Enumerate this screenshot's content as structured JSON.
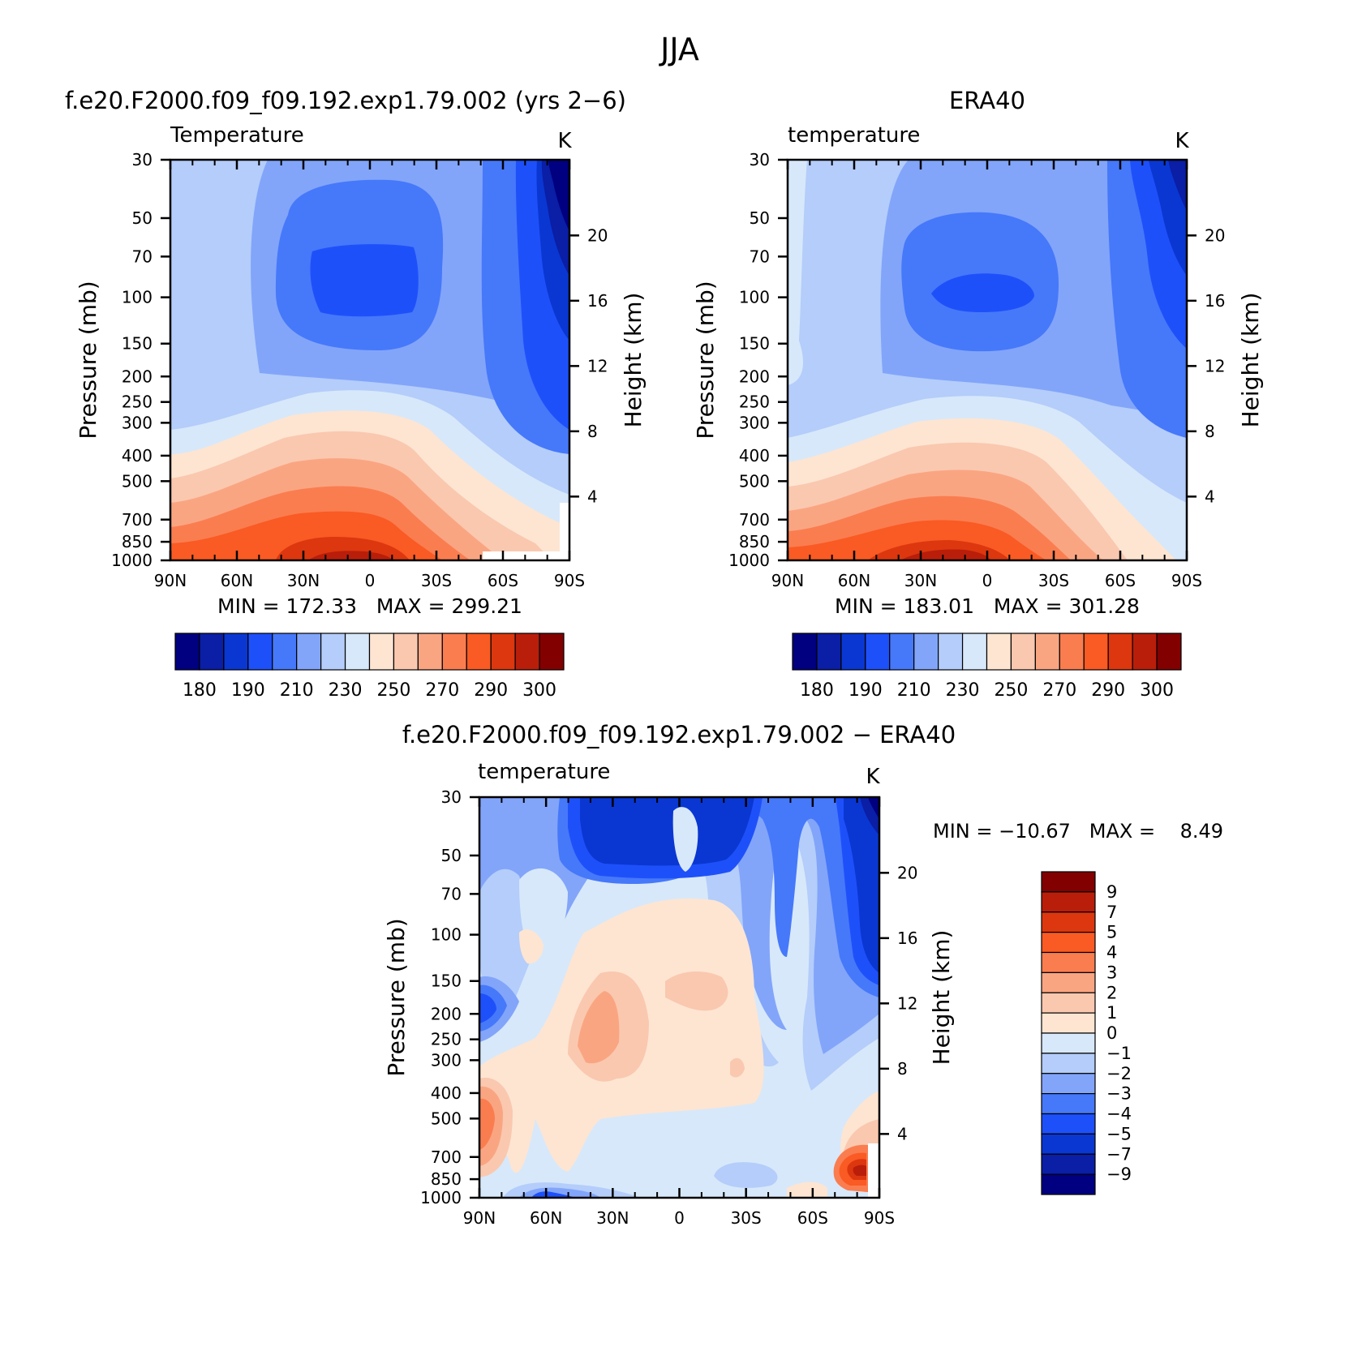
{
  "figure": {
    "title": "JJA",
    "diff_title": "f.e20.F2000.f09_f09.192.exp1.79.002 − ERA40"
  },
  "colors": {
    "abs_levels": [
      "#000080",
      "#0a1ea6",
      "#0a37d2",
      "#1e50fa",
      "#4678fa",
      "#82a5fa",
      "#b4cdfa",
      "#d7e8fa",
      "#fde5d2",
      "#fac8af",
      "#faa582",
      "#fa7d50",
      "#fa5a23",
      "#dc370f",
      "#b91e0a",
      "#820000"
    ],
    "diff_levels": [
      "#000080",
      "#0a1ea6",
      "#0a37d2",
      "#1e50fa",
      "#4678fa",
      "#82a5fa",
      "#b4cdfa",
      "#d7e8fa",
      "#fde5d2",
      "#fac8af",
      "#faa582",
      "#fa7d50",
      "#fa5a23",
      "#dc370f",
      "#b91e0a",
      "#820000"
    ]
  },
  "chart_data": [
    {
      "type": "contour",
      "heading": "f.e20.F2000.f09_f09.192.exp1.79.002 (yrs 2−6)",
      "field_label": "Temperature",
      "units": "K",
      "xlabel": "",
      "ylabel": "Pressure (mb)",
      "ylabel_right": "Height (km)",
      "x_ticks": [
        "90N",
        "60N",
        "30N",
        "0",
        "30S",
        "60S",
        "90S"
      ],
      "y_ticks": [
        30,
        50,
        70,
        100,
        150,
        200,
        250,
        300,
        400,
        500,
        700,
        850,
        1000
      ],
      "y_ticks_right": [
        20,
        16,
        12,
        8,
        4
      ],
      "stats": "MIN = 172.33   MAX = 299.21",
      "min": 172.33,
      "max": 299.21,
      "colorbar_labels": [
        "180",
        "190",
        "210",
        "230",
        "250",
        "270",
        "290",
        "300"
      ],
      "colorbar_levels": [
        180,
        185,
        190,
        200,
        210,
        220,
        230,
        240,
        250,
        260,
        270,
        280,
        290,
        295,
        300
      ]
    },
    {
      "type": "contour",
      "heading": "ERA40",
      "field_label": "temperature",
      "units": "K",
      "xlabel": "",
      "ylabel": "Pressure (mb)",
      "ylabel_right": "Height (km)",
      "x_ticks": [
        "90N",
        "60N",
        "30N",
        "0",
        "30S",
        "60S",
        "90S"
      ],
      "y_ticks": [
        30,
        50,
        70,
        100,
        150,
        200,
        250,
        300,
        400,
        500,
        700,
        850,
        1000
      ],
      "y_ticks_right": [
        20,
        16,
        12,
        8,
        4
      ],
      "stats": "MIN = 183.01   MAX = 301.28",
      "min": 183.01,
      "max": 301.28,
      "colorbar_labels": [
        "180",
        "190",
        "210",
        "230",
        "250",
        "270",
        "290",
        "300"
      ],
      "colorbar_levels": [
        180,
        185,
        190,
        200,
        210,
        220,
        230,
        240,
        250,
        260,
        270,
        280,
        290,
        295,
        300
      ]
    },
    {
      "type": "contour",
      "heading": "f.e20.F2000.f09_f09.192.exp1.79.002 − ERA40",
      "field_label": "temperature",
      "units": "K",
      "xlabel": "",
      "ylabel": "Pressure (mb)",
      "ylabel_right": "Height (km)",
      "x_ticks": [
        "90N",
        "60N",
        "30N",
        "0",
        "30S",
        "60S",
        "90S"
      ],
      "y_ticks": [
        30,
        50,
        70,
        100,
        150,
        200,
        250,
        300,
        400,
        500,
        700,
        850,
        1000
      ],
      "y_ticks_right": [
        20,
        16,
        12,
        8,
        4
      ],
      "stats": "MIN = −10.67   MAX =    8.49",
      "min": -10.67,
      "max": 8.49,
      "colorbar_labels": [
        "9",
        "7",
        "5",
        "4",
        "3",
        "2",
        "1",
        "0",
        "−1",
        "−2",
        "−3",
        "−4",
        "−5",
        "−7",
        "−9"
      ],
      "colorbar_levels": [
        -9,
        -7,
        -5,
        -4,
        -3,
        -2,
        -1,
        0,
        1,
        2,
        3,
        4,
        5,
        7,
        9
      ]
    }
  ]
}
